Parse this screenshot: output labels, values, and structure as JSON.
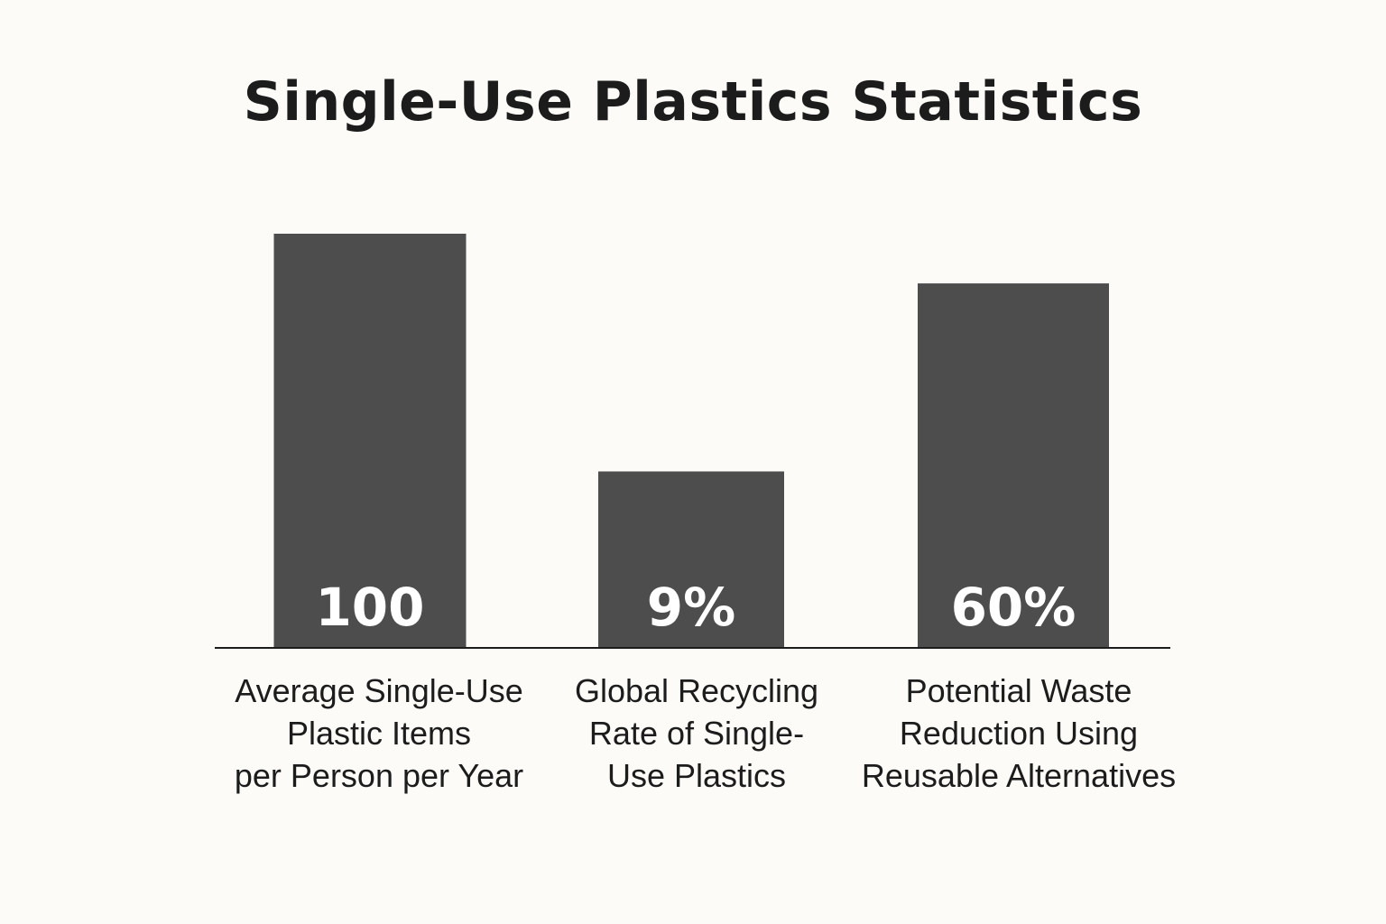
{
  "chart_data": {
    "type": "bar",
    "title": "Single-Use Plastics Statistics",
    "xlabel": "",
    "ylabel": "",
    "categories": [
      [
        "Average Single-Use",
        "Plastic Items",
        "per Person per Year"
      ],
      [
        "Global Recycling",
        "Rate of Single-",
        "Use Plastics"
      ],
      [
        "Potential Waste",
        "Reduction Using",
        "Reusable Alternatives"
      ]
    ],
    "values": [
      100,
      9,
      60
    ],
    "value_labels": [
      "100",
      "9%",
      "60%"
    ],
    "relative_heights": [
      1.0,
      0.426,
      0.88
    ],
    "grid": false,
    "legend": "none",
    "bar_color": "#4d4d4d",
    "background": "#fcfbf7"
  }
}
